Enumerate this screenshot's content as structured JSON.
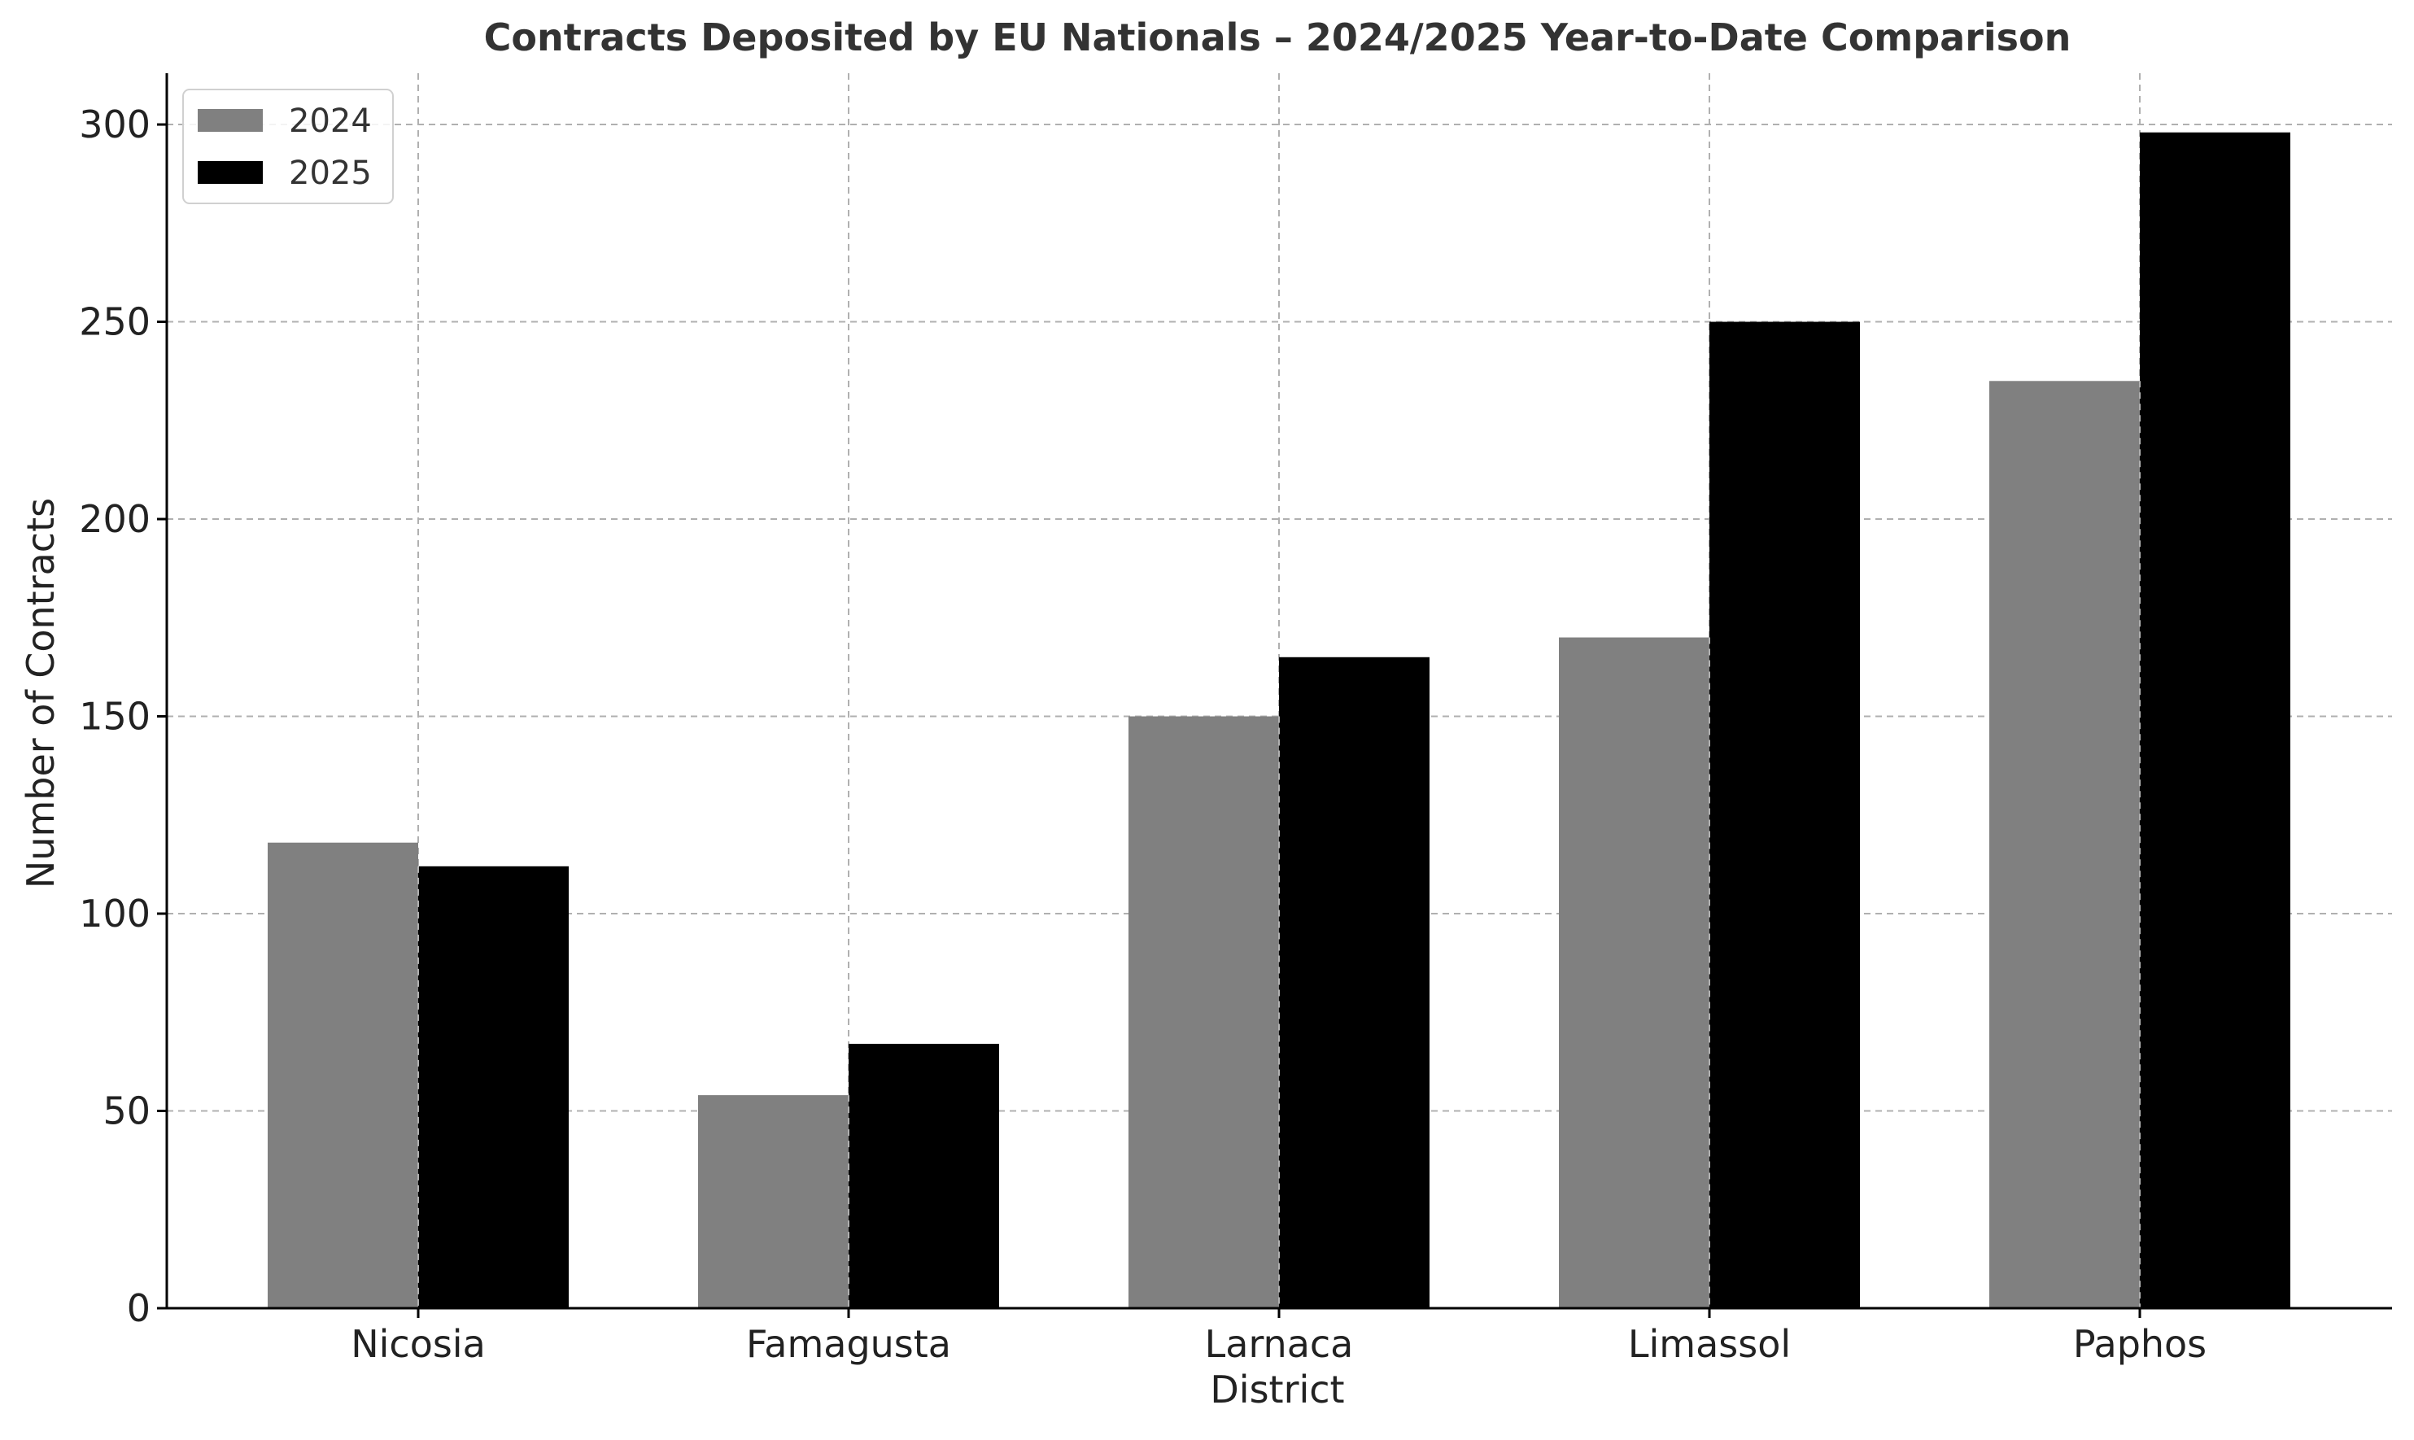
{
  "chart_data": {
    "type": "bar",
    "title": "Contracts Deposited by EU Nationals – 2024/2025 Year-to-Date Comparison",
    "xlabel": "District",
    "ylabel": "Number of Contracts",
    "categories": [
      "Nicosia",
      "Famagusta",
      "Larnaca",
      "Limassol",
      "Paphos"
    ],
    "series": [
      {
        "name": "2024",
        "color": "#808080",
        "values": [
          118,
          54,
          150,
          170,
          235
        ]
      },
      {
        "name": "2025",
        "color": "#000000",
        "values": [
          112,
          67,
          165,
          250,
          298
        ]
      }
    ],
    "ylim": [
      0,
      313
    ],
    "yticks": [
      0,
      50,
      100,
      150,
      200,
      250,
      300
    ],
    "grid": true,
    "legend_position": "top-left"
  }
}
